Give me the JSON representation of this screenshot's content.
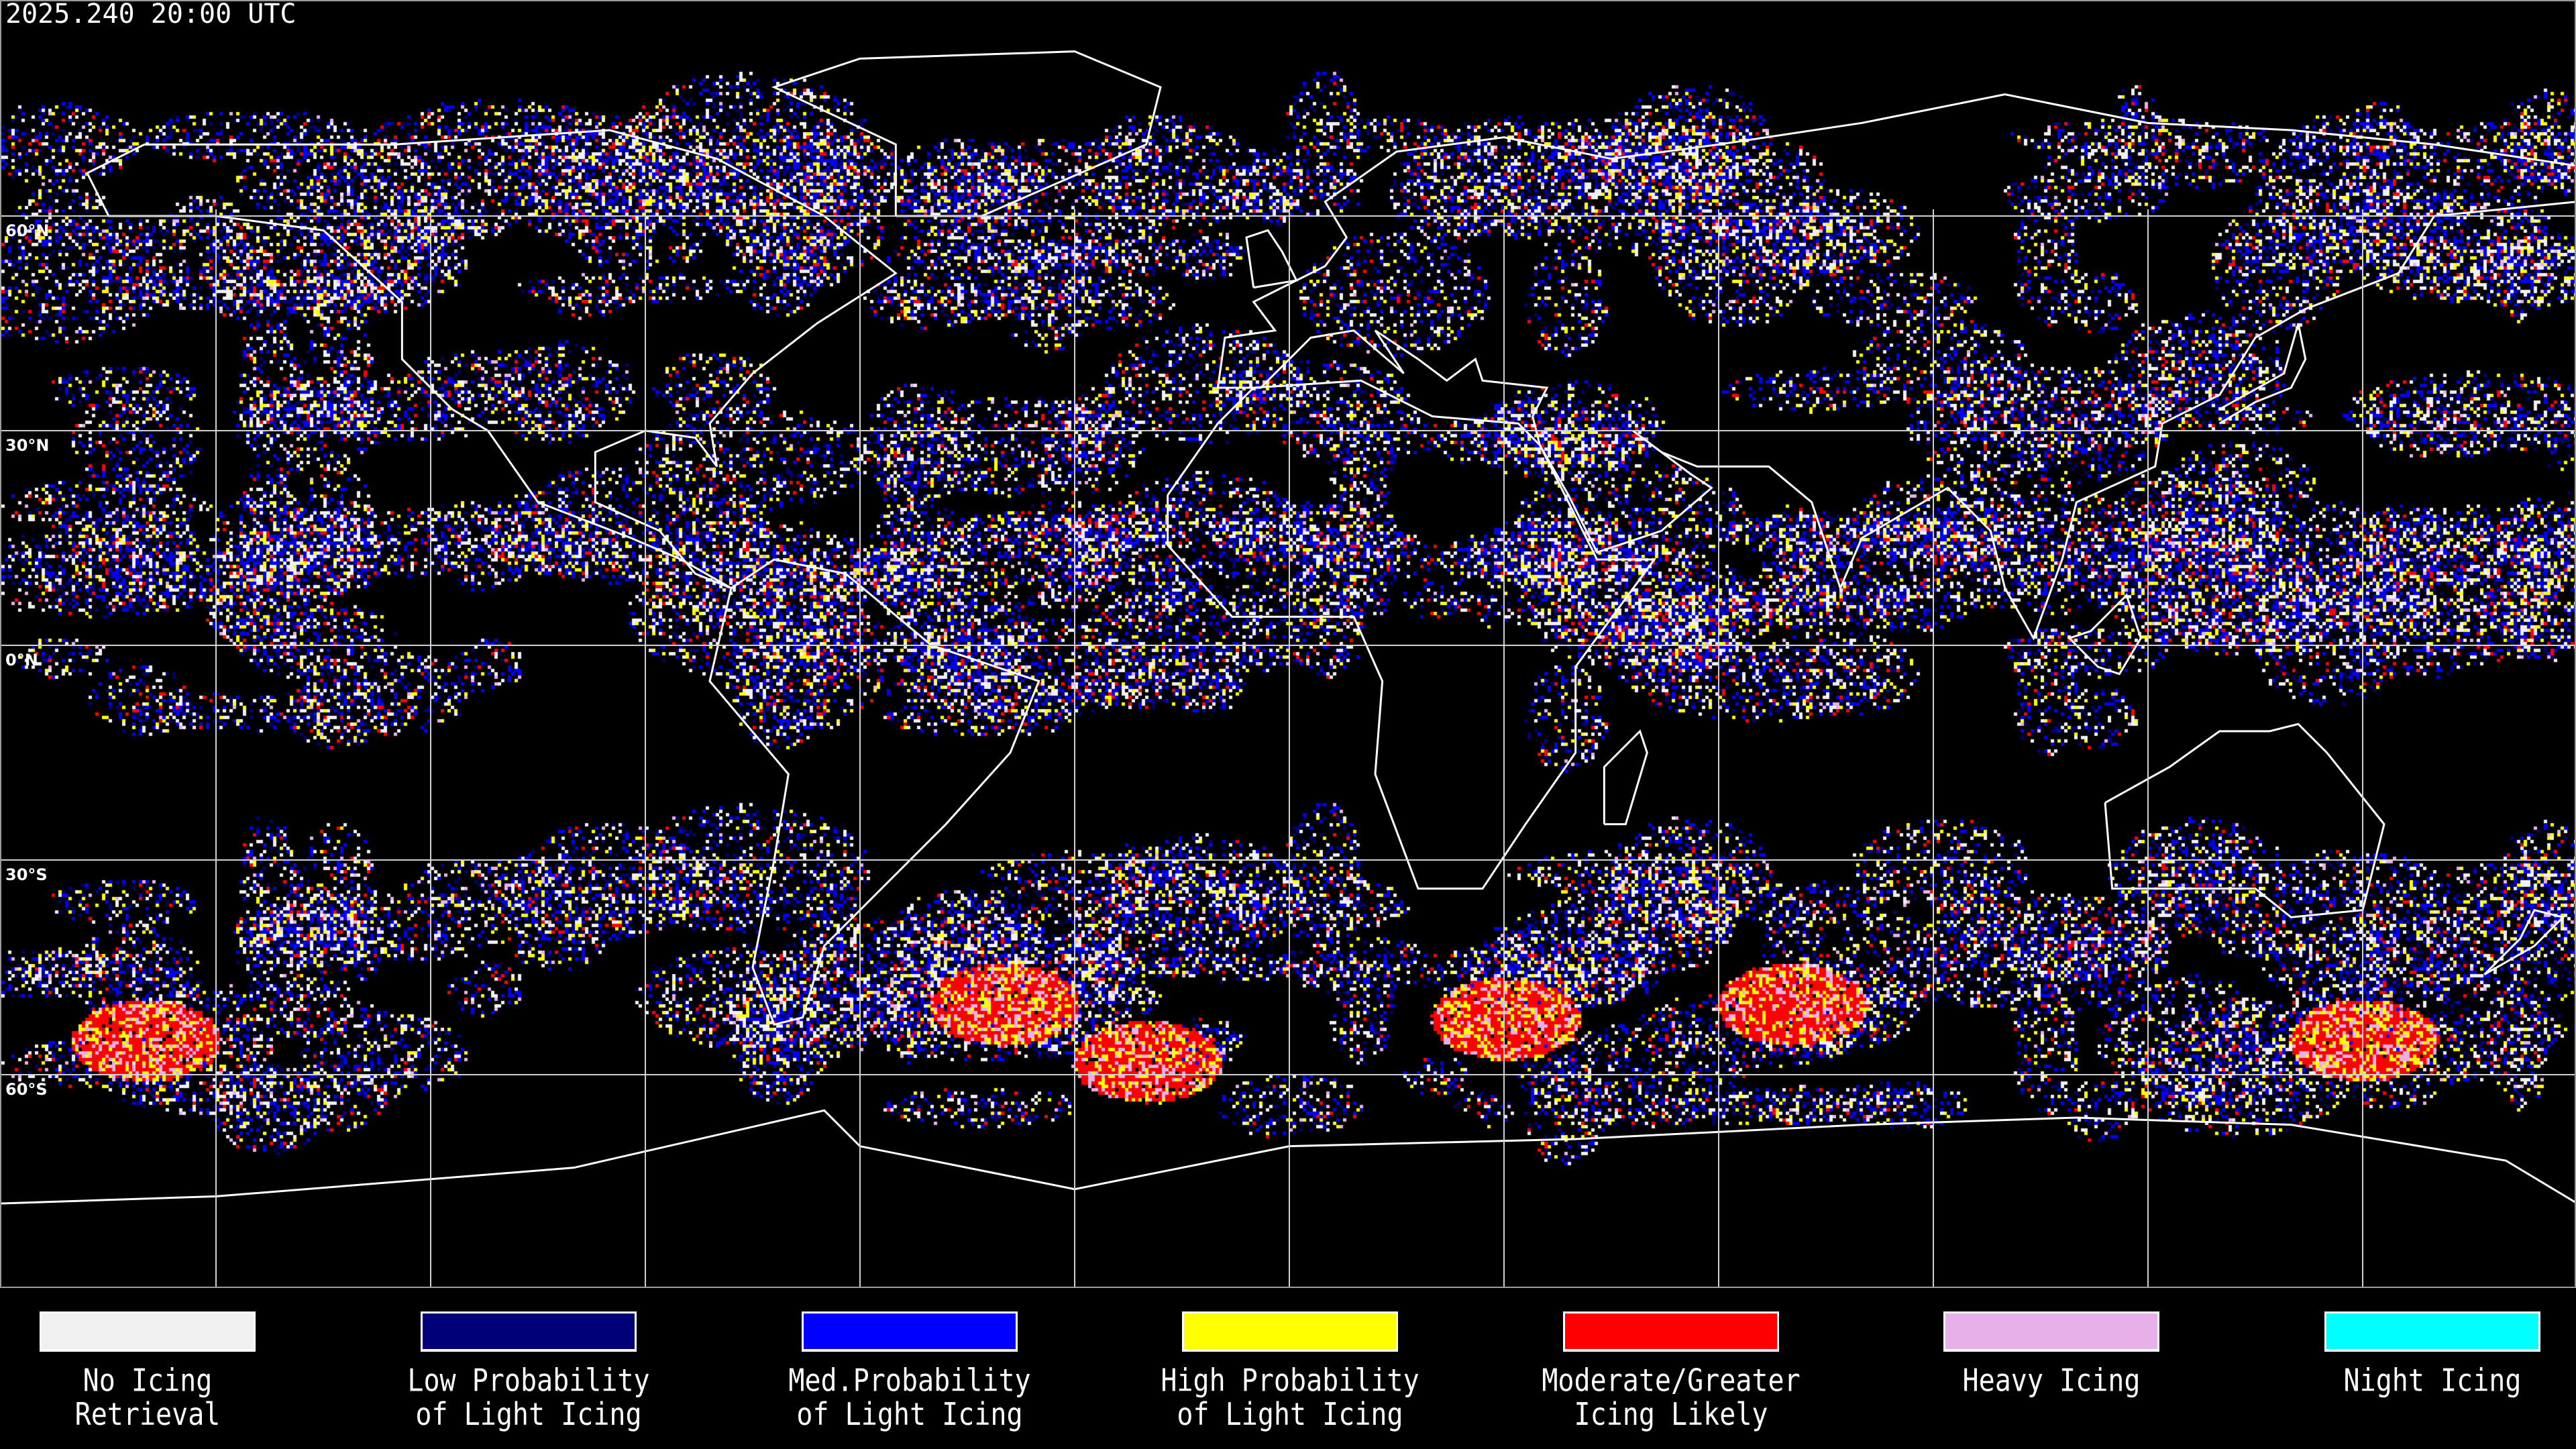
{
  "header": {
    "timestamp": "2025.240 20:00 UTC"
  },
  "map": {
    "projection": "equirectangular",
    "grid_spacing_degrees": 30,
    "latitude_labels": [
      {
        "lat": 60,
        "label": "60°N"
      },
      {
        "lat": 30,
        "label": "30°N"
      },
      {
        "lat": 0,
        "label": "0°N"
      },
      {
        "lat": -30,
        "label": "30°S"
      },
      {
        "lat": -60,
        "label": "60°S"
      }
    ],
    "coastline_color": "#ffffff",
    "grid_color": "#d0d0d0"
  },
  "legend": [
    {
      "line1": "No Icing",
      "line2": "Retrieval",
      "color": "#f0f0f0"
    },
    {
      "line1": "Low Probability",
      "line2": "of Light Icing",
      "color": "#000078"
    },
    {
      "line1": "Med.Probability",
      "line2": "of Light Icing",
      "color": "#0000ff"
    },
    {
      "line1": "High Probability",
      "line2": "of Light Icing",
      "color": "#ffff00"
    },
    {
      "line1": "Moderate/Greater",
      "line2": "Icing Likely",
      "color": "#ff0000"
    },
    {
      "line1": "Heavy Icing",
      "line2": "",
      "color": "#e8b0e8"
    },
    {
      "line1": "Night Icing",
      "line2": "",
      "color": "#00ffff"
    }
  ]
}
